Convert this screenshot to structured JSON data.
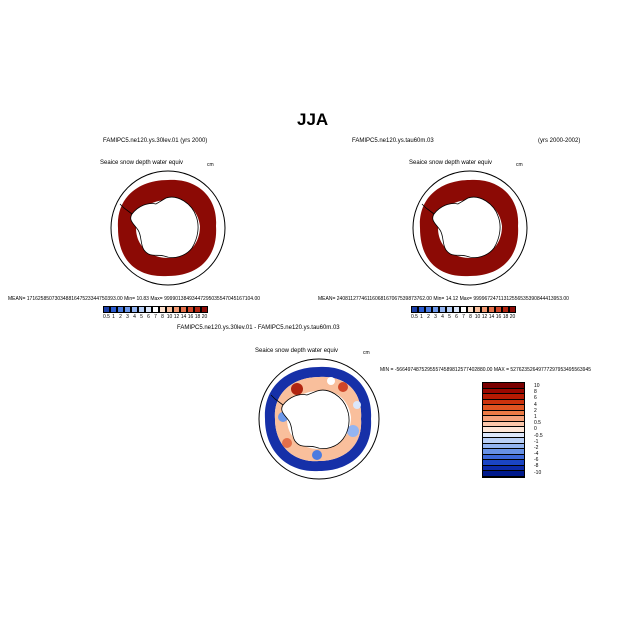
{
  "figure": {
    "title": "JJA"
  },
  "left_panel": {
    "header": "FAMIPC5.ne120.ys.30lev.01 (yrs 2000)",
    "variable": "Seaice snow depth water equiv",
    "units": "cm",
    "stats": "MEAN= 17162585073034881647523344750393.00  Min=  10.83  Max= 99990138493447295035547045167104.00",
    "colorbar_labels": [
      "0.5",
      "1",
      "2",
      "3",
      "4",
      "5",
      "6",
      "7",
      "8",
      "10",
      "12",
      "14",
      "16",
      "18",
      "20"
    ]
  },
  "right_panel": {
    "header_left": "FAMIPC5.ne120.ys.tau60m.03",
    "header_right": "(yrs 2000-2002)",
    "variable": "Seaice snow depth water equiv",
    "units": "cm",
    "stats": "MEAN= 24081127746116068167067539873762.00  Min=  14.12  Max= 99996724711312556535390844413953.00",
    "colorbar_labels": [
      "0.5",
      "1",
      "2",
      "3",
      "4",
      "5",
      "6",
      "7",
      "8",
      "10",
      "12",
      "14",
      "16",
      "18",
      "20"
    ]
  },
  "diff_panel": {
    "header": "FAMIPC5.ne120.ys.30lev.01 - FAMIPC5.ne120.ys.tau60m.03",
    "variable": "Seaice snow depth water equiv",
    "units": "cm",
    "stats": "MIN = -56649748752955574589812577402880.00  MAX = 52762352649777297953495563945",
    "colorbar_labels": [
      "10",
      "8",
      "6",
      "4",
      "2",
      "1",
      "0.5",
      "0",
      "-0.5",
      "-1",
      "-2",
      "-4",
      "-6",
      "-8",
      "-10"
    ]
  },
  "colors": {
    "seq_scale": [
      "#1b3ea8",
      "#2a5bd1",
      "#4a7be0",
      "#6d98ea",
      "#93b4f1",
      "#b7cff6",
      "#dbe7fb",
      "#ffffff",
      "#fde0cc",
      "#f9bf9c",
      "#f29a72",
      "#e4704a",
      "#cf4628",
      "#b0240f",
      "#8c0a05"
    ],
    "div_scale": [
      "#7a0000",
      "#990800",
      "#b51a02",
      "#cc330d",
      "#df5522",
      "#ec7a45",
      "#f5a27b",
      "#fbc7ab",
      "#fde6d8",
      "#dde7fb",
      "#b9cff6",
      "#92b3f0",
      "#6791e6",
      "#3c68d9",
      "#1b45c4",
      "#0c2aa8",
      "#001a8c"
    ],
    "sea_ice_dark_red": "#8c0a05",
    "deep_blue": "#1630a8"
  }
}
